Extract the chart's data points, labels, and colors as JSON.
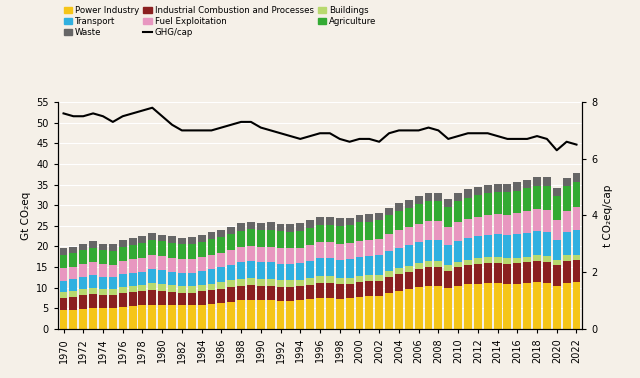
{
  "years": [
    1970,
    1971,
    1972,
    1973,
    1974,
    1975,
    1976,
    1977,
    1978,
    1979,
    1980,
    1981,
    1982,
    1983,
    1984,
    1985,
    1986,
    1987,
    1988,
    1989,
    1990,
    1991,
    1992,
    1993,
    1994,
    1995,
    1996,
    1997,
    1998,
    1999,
    2000,
    2001,
    2002,
    2003,
    2004,
    2005,
    2006,
    2007,
    2008,
    2009,
    2010,
    2011,
    2012,
    2013,
    2014,
    2015,
    2016,
    2017,
    2018,
    2019,
    2020,
    2021,
    2022
  ],
  "power_industry": [
    4.5,
    4.6,
    4.9,
    5.1,
    5.0,
    5.0,
    5.3,
    5.5,
    5.7,
    5.9,
    5.9,
    5.8,
    5.7,
    5.7,
    5.9,
    6.1,
    6.3,
    6.6,
    6.9,
    7.0,
    6.9,
    7.0,
    6.8,
    6.8,
    6.9,
    7.2,
    7.5,
    7.5,
    7.3,
    7.4,
    7.7,
    7.9,
    8.0,
    8.7,
    9.3,
    9.7,
    10.1,
    10.5,
    10.5,
    9.9,
    10.5,
    10.8,
    11.0,
    11.2,
    11.1,
    10.9,
    10.9,
    11.1,
    11.3,
    11.2,
    10.5,
    11.2,
    11.3
  ],
  "industrial_combustion": [
    3.0,
    3.1,
    3.2,
    3.3,
    3.2,
    3.1,
    3.3,
    3.4,
    3.4,
    3.5,
    3.4,
    3.2,
    3.1,
    3.1,
    3.2,
    3.3,
    3.4,
    3.5,
    3.6,
    3.7,
    3.6,
    3.5,
    3.4,
    3.4,
    3.4,
    3.5,
    3.6,
    3.6,
    3.5,
    3.5,
    3.6,
    3.6,
    3.6,
    3.8,
    4.0,
    4.1,
    4.3,
    4.4,
    4.4,
    4.2,
    4.4,
    4.6,
    4.7,
    4.8,
    4.9,
    4.9,
    5.0,
    5.0,
    5.1,
    5.1,
    4.9,
    5.2,
    5.3
  ],
  "buildings": [
    1.5,
    1.5,
    1.6,
    1.6,
    1.5,
    1.5,
    1.6,
    1.6,
    1.6,
    1.7,
    1.6,
    1.6,
    1.5,
    1.5,
    1.5,
    1.6,
    1.6,
    1.7,
    1.7,
    1.7,
    1.6,
    1.6,
    1.6,
    1.6,
    1.6,
    1.6,
    1.7,
    1.6,
    1.5,
    1.5,
    1.5,
    1.5,
    1.5,
    1.5,
    1.5,
    1.5,
    1.5,
    1.5,
    1.5,
    1.4,
    1.4,
    1.4,
    1.4,
    1.4,
    1.4,
    1.4,
    1.4,
    1.4,
    1.4,
    1.4,
    1.3,
    1.4,
    1.4
  ],
  "transport": [
    2.7,
    2.8,
    2.9,
    3.0,
    2.9,
    2.9,
    3.0,
    3.1,
    3.2,
    3.4,
    3.3,
    3.3,
    3.3,
    3.3,
    3.4,
    3.5,
    3.6,
    3.8,
    3.9,
    4.0,
    4.0,
    4.0,
    4.0,
    4.0,
    4.1,
    4.2,
    4.3,
    4.4,
    4.4,
    4.5,
    4.6,
    4.6,
    4.7,
    4.8,
    4.9,
    5.0,
    5.1,
    5.2,
    5.2,
    4.9,
    5.1,
    5.2,
    5.3,
    5.4,
    5.5,
    5.5,
    5.6,
    5.8,
    5.9,
    5.9,
    4.8,
    5.6,
    6.0
  ],
  "fuel_exploitation": [
    3.0,
    3.0,
    3.1,
    3.2,
    3.1,
    3.1,
    3.2,
    3.3,
    3.4,
    3.5,
    3.4,
    3.3,
    3.3,
    3.3,
    3.4,
    3.5,
    3.5,
    3.6,
    3.7,
    3.8,
    3.8,
    3.8,
    3.8,
    3.7,
    3.7,
    3.8,
    3.9,
    3.9,
    3.9,
    3.9,
    4.0,
    4.0,
    4.0,
    4.1,
    4.2,
    4.3,
    4.4,
    4.5,
    4.5,
    4.3,
    4.5,
    4.6,
    4.7,
    4.8,
    4.9,
    5.0,
    5.1,
    5.2,
    5.3,
    5.3,
    5.0,
    5.3,
    5.5
  ],
  "agriculture": [
    3.3,
    3.3,
    3.4,
    3.4,
    3.4,
    3.4,
    3.5,
    3.5,
    3.6,
    3.6,
    3.6,
    3.6,
    3.6,
    3.7,
    3.7,
    3.8,
    3.8,
    3.9,
    4.0,
    4.0,
    4.0,
    4.1,
    4.1,
    4.1,
    4.1,
    4.2,
    4.2,
    4.3,
    4.3,
    4.3,
    4.4,
    4.4,
    4.5,
    4.6,
    4.7,
    4.7,
    4.8,
    4.9,
    4.9,
    4.9,
    5.1,
    5.2,
    5.3,
    5.4,
    5.4,
    5.5,
    5.5,
    5.6,
    5.7,
    5.8,
    5.7,
    5.9,
    6.1
  ],
  "waste": [
    1.5,
    1.5,
    1.5,
    1.6,
    1.5,
    1.5,
    1.6,
    1.6,
    1.6,
    1.6,
    1.6,
    1.6,
    1.6,
    1.6,
    1.6,
    1.7,
    1.7,
    1.7,
    1.8,
    1.8,
    1.8,
    1.8,
    1.8,
    1.8,
    1.8,
    1.9,
    1.9,
    1.9,
    1.9,
    1.9,
    1.9,
    1.9,
    1.9,
    1.9,
    1.9,
    1.9,
    1.9,
    1.9,
    1.9,
    1.9,
    2.0,
    2.0,
    2.0,
    2.0,
    2.0,
    2.0,
    2.0,
    2.0,
    2.1,
    2.1,
    2.0,
    2.1,
    2.1
  ],
  "ghg_cap": [
    7.6,
    7.5,
    7.5,
    7.6,
    7.5,
    7.3,
    7.5,
    7.6,
    7.7,
    7.8,
    7.5,
    7.2,
    7.0,
    7.0,
    7.0,
    7.0,
    7.1,
    7.2,
    7.3,
    7.3,
    7.1,
    7.0,
    6.9,
    6.8,
    6.7,
    6.8,
    6.9,
    6.9,
    6.7,
    6.6,
    6.7,
    6.7,
    6.6,
    6.9,
    7.0,
    7.0,
    7.0,
    7.1,
    7.0,
    6.7,
    6.8,
    6.9,
    6.9,
    6.9,
    6.8,
    6.7,
    6.7,
    6.7,
    6.8,
    6.7,
    6.3,
    6.6,
    6.5
  ],
  "colors": {
    "power_industry": "#f5c518",
    "industrial_combustion": "#8b2020",
    "buildings": "#b8d96e",
    "transport": "#30b0e0",
    "fuel_exploitation": "#e897c0",
    "agriculture": "#33aa33",
    "waste": "#666666"
  },
  "ylim_left": [
    0,
    55
  ],
  "ylim_right": [
    0,
    8
  ],
  "ylabel_left": "Gt CO₂eq",
  "ylabel_right": "t CO₂eq/cap",
  "yticks_left": [
    0,
    5,
    10,
    15,
    20,
    25,
    30,
    35,
    40,
    45,
    50,
    55
  ],
  "yticks_right": [
    0,
    2,
    4,
    6,
    8
  ],
  "bg_color": "#f5f0e8",
  "grid_color": "#ffffff"
}
